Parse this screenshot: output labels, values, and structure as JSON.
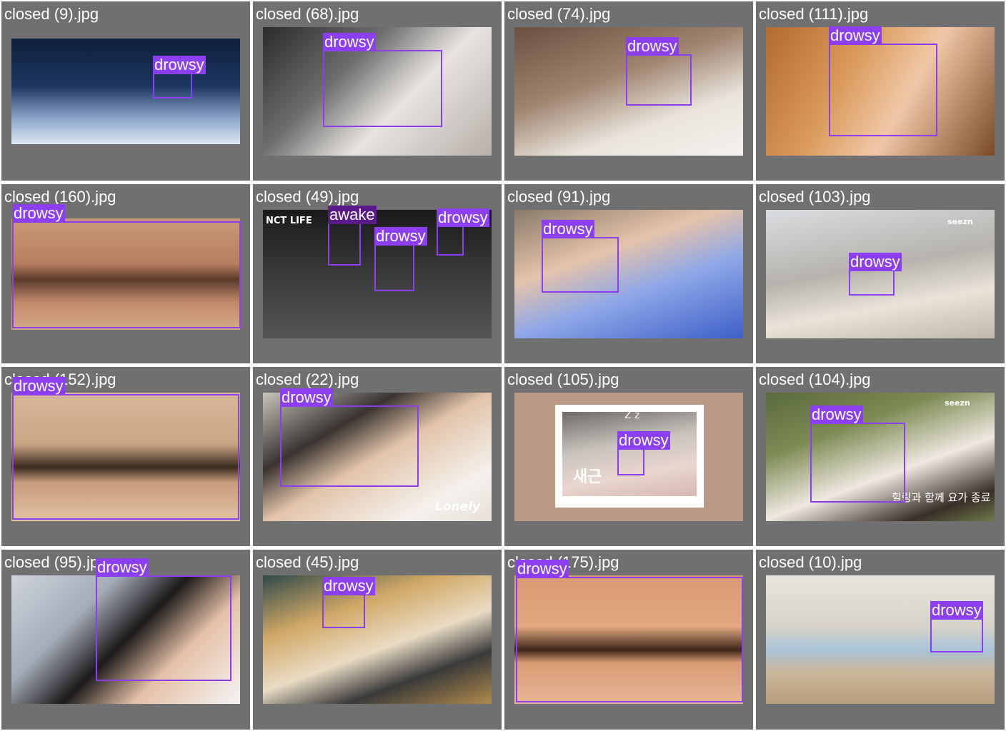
{
  "grid": {
    "cells": [
      {
        "title": "closed (9).jpg",
        "detections": [
          {
            "label": "drowsy"
          }
        ]
      },
      {
        "title": "closed (68).jpg",
        "detections": [
          {
            "label": "drowsy"
          }
        ]
      },
      {
        "title": "closed (74).jpg",
        "detections": [
          {
            "label": "drowsy"
          }
        ]
      },
      {
        "title": "closed (111).jpg",
        "detections": [
          {
            "label": "drowsy"
          }
        ]
      },
      {
        "title": "closed (160).jpg",
        "detections": [
          {
            "label": "drowsy"
          }
        ]
      },
      {
        "title": "closed (49).jpg",
        "detections": [
          {
            "label": "awake"
          },
          {
            "label": "drowsy"
          },
          {
            "label": "drowsy"
          }
        ]
      },
      {
        "title": "closed (91).jpg",
        "detections": [
          {
            "label": "drowsy"
          }
        ]
      },
      {
        "title": "closed (103).jpg",
        "detections": [
          {
            "label": "drowsy"
          }
        ]
      },
      {
        "title": "closed (152).jpg",
        "detections": [
          {
            "label": "drowsy"
          }
        ]
      },
      {
        "title": "closed (22).jpg",
        "detections": [
          {
            "label": "drowsy"
          }
        ]
      },
      {
        "title": "closed (105).jpg",
        "detections": [
          {
            "label": "drowsy"
          }
        ]
      },
      {
        "title": "closed (104).jpg",
        "detections": [
          {
            "label": "drowsy"
          }
        ]
      },
      {
        "title": "closed (95).jpg",
        "detections": [
          {
            "label": "drowsy"
          }
        ]
      },
      {
        "title": "closed (45).jpg",
        "detections": [
          {
            "label": "drowsy"
          }
        ]
      },
      {
        "title": "closed (175).jpg",
        "detections": [
          {
            "label": "drowsy"
          }
        ]
      },
      {
        "title": "closed (10).jpg",
        "detections": [
          {
            "label": "drowsy"
          }
        ]
      }
    ]
  },
  "overlays": {
    "nct_life": "NCT LIFE",
    "lonely": "Lonely",
    "zz": "Z z",
    "korean_caption_105": "새근",
    "korean_caption_104": "힐링과 함께 요가 종료",
    "seezn": "seezn"
  },
  "colors": {
    "cell_bg": "#707070",
    "box": "#8B3FF0",
    "label_bg": "#8B3FF0",
    "label_text": "#ffffff"
  }
}
